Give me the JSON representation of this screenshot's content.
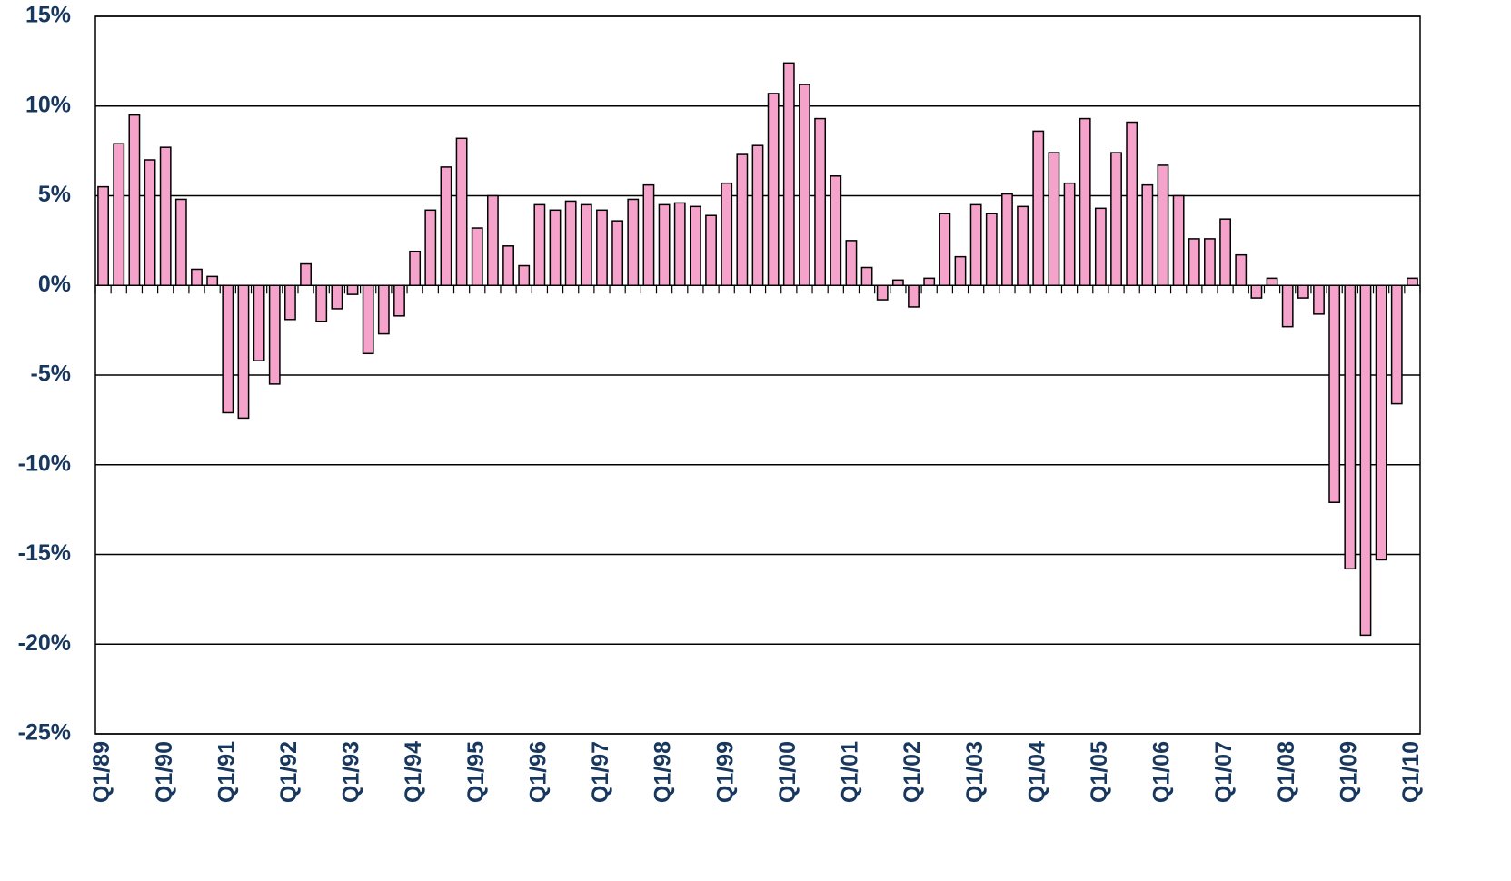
{
  "chart_data": {
    "type": "bar",
    "categories": [
      "Q1/89",
      null,
      null,
      null,
      "Q1/90",
      null,
      null,
      null,
      "Q1/91",
      null,
      null,
      null,
      "Q1/92",
      null,
      null,
      null,
      "Q1/93",
      null,
      null,
      null,
      "Q1/94",
      null,
      null,
      null,
      "Q1/95",
      null,
      null,
      null,
      "Q1/96",
      null,
      null,
      null,
      "Q1/97",
      null,
      null,
      null,
      "Q1/98",
      null,
      null,
      null,
      "Q1/99",
      null,
      null,
      null,
      "Q1/00",
      null,
      null,
      null,
      "Q1/01",
      null,
      null,
      null,
      "Q1/02",
      null,
      null,
      null,
      "Q1/03",
      null,
      null,
      null,
      "Q1/04",
      null,
      null,
      null,
      "Q1/05",
      null,
      null,
      null,
      "Q1/06",
      null,
      null,
      null,
      "Q1/07",
      null,
      null,
      null,
      "Q1/08",
      null,
      null,
      null,
      "Q1/09",
      null,
      null,
      null,
      "Q1/10"
    ],
    "values": [
      5.5,
      7.9,
      9.5,
      7.0,
      7.7,
      4.8,
      0.9,
      0.5,
      -7.1,
      -7.4,
      -4.2,
      -5.5,
      -1.9,
      1.2,
      -2.0,
      -1.3,
      -0.5,
      -3.8,
      -2.7,
      -1.7,
      1.9,
      4.2,
      6.6,
      8.2,
      3.2,
      5.0,
      2.2,
      1.1,
      4.5,
      4.2,
      4.7,
      4.5,
      4.2,
      3.6,
      4.8,
      5.6,
      4.5,
      4.6,
      4.4,
      3.9,
      5.7,
      7.3,
      7.8,
      10.7,
      12.4,
      11.2,
      9.3,
      6.1,
      2.5,
      1.0,
      -0.8,
      0.3,
      -1.2,
      0.4,
      4.0,
      1.6,
      4.5,
      4.0,
      5.1,
      4.4,
      8.6,
      7.4,
      5.7,
      9.3,
      4.3,
      7.4,
      9.1,
      5.6,
      6.7,
      5.0,
      2.6,
      2.6,
      3.7,
      1.7,
      -0.7,
      0.4,
      -2.3,
      -0.7,
      -1.6,
      -12.1,
      -15.8,
      -19.5,
      -15.3,
      -6.6,
      0.4
    ],
    "color": "#f6a3cc",
    "ylim": [
      -25,
      15
    ],
    "yticks": [
      {
        "value": -25,
        "label": "-25%"
      },
      {
        "value": -20,
        "label": "-20%"
      },
      {
        "value": -15,
        "label": "-15%"
      },
      {
        "value": -10,
        "label": "-10%"
      },
      {
        "value": -5,
        "label": "-5%"
      },
      {
        "value": 0,
        "label": "0%"
      },
      {
        "value": 5,
        "label": "5%"
      },
      {
        "value": 10,
        "label": "10%"
      },
      {
        "value": 15,
        "label": "15%"
      }
    ],
    "grid": true
  }
}
